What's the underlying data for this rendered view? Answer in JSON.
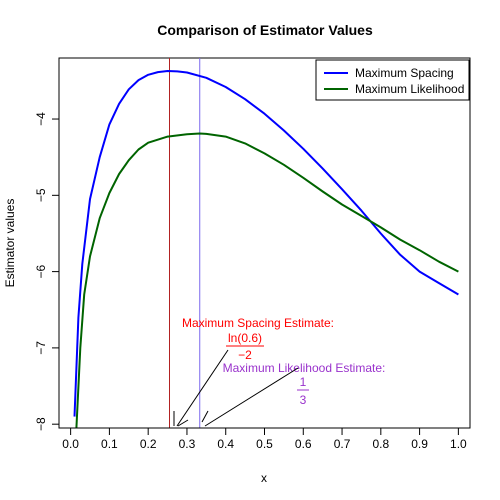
{
  "chart_data": {
    "type": "line",
    "title": "Comparison of Estimator Values",
    "xlabel": "x",
    "ylabel": "Estimator values",
    "xlim": [
      -0.03,
      1.03
    ],
    "ylim": [
      -8.05,
      -3.2
    ],
    "x_ticks": [
      "0.0",
      "0.1",
      "0.2",
      "0.3",
      "0.4",
      "0.5",
      "0.6",
      "0.7",
      "0.8",
      "0.9",
      "1.0"
    ],
    "y_ticks": [
      "−8",
      "−7",
      "−6",
      "−5",
      "−4"
    ],
    "y_tick_values": [
      -8,
      -7,
      -6,
      -5,
      -4
    ],
    "x_tick_values": [
      0.0,
      0.1,
      0.2,
      0.3,
      0.4,
      0.5,
      0.6,
      0.7,
      0.8,
      0.9,
      1.0
    ],
    "grid": false,
    "legend_position": "top-right",
    "series": [
      {
        "name": "Maximum Spacing",
        "color": "#0000ff",
        "x": [
          0.01,
          0.02,
          0.03,
          0.05,
          0.075,
          0.1,
          0.125,
          0.15,
          0.175,
          0.2,
          0.225,
          0.25,
          0.275,
          0.3,
          0.35,
          0.4,
          0.45,
          0.5,
          0.55,
          0.6,
          0.65,
          0.7,
          0.75,
          0.8,
          0.85,
          0.9,
          0.95,
          1.0
        ],
        "y": [
          -7.9,
          -6.6,
          -5.9,
          -5.05,
          -4.5,
          -4.07,
          -3.8,
          -3.61,
          -3.49,
          -3.42,
          -3.385,
          -3.37,
          -3.375,
          -3.39,
          -3.46,
          -3.58,
          -3.74,
          -3.93,
          -4.15,
          -4.39,
          -4.65,
          -4.92,
          -5.2,
          -5.5,
          -5.78,
          -6.0,
          -6.15,
          -6.3
        ]
      },
      {
        "name": "Maximum Likelihood",
        "color": "#006400",
        "x": [
          0.015,
          0.025,
          0.035,
          0.05,
          0.075,
          0.1,
          0.125,
          0.15,
          0.175,
          0.2,
          0.25,
          0.3,
          0.333,
          0.35,
          0.4,
          0.45,
          0.5,
          0.55,
          0.6,
          0.65,
          0.7,
          0.75,
          0.8,
          0.85,
          0.9,
          0.95,
          1.0
        ],
        "y": [
          -8.05,
          -7.0,
          -6.3,
          -5.8,
          -5.3,
          -4.97,
          -4.72,
          -4.54,
          -4.4,
          -4.31,
          -4.23,
          -4.2,
          -4.19,
          -4.195,
          -4.23,
          -4.32,
          -4.45,
          -4.6,
          -4.77,
          -4.95,
          -5.12,
          -5.27,
          -5.42,
          -5.58,
          -5.72,
          -5.87,
          -6.0
        ]
      }
    ],
    "vlines": [
      {
        "x": 0.255,
        "color": "#b22222"
      },
      {
        "x": 0.333,
        "color": "#7b68ee"
      }
    ],
    "annotations": {
      "ms_label": "Maximum Spacing Estimate:",
      "ms_numerator": "ln(0.6)",
      "ms_denominator": "−2",
      "ms_color": "#ff0000",
      "ml_label": "Maximum Likelihood Estimate:",
      "ml_numerator": "1",
      "ml_denominator": "3",
      "ml_color": "#9932cc"
    }
  }
}
